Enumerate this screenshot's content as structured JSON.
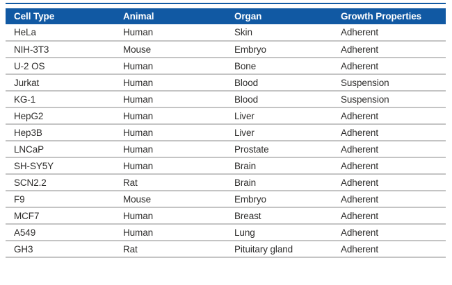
{
  "colors": {
    "header_bg": "#1159a3",
    "top_rule": "#1159a3",
    "row_border": "#c4c4c4",
    "header_text": "#ffffff",
    "body_text": "#2e2d2c"
  },
  "table": {
    "columns": [
      "Cell Type",
      "Animal",
      "Organ",
      "Growth Properties"
    ],
    "rows": [
      {
        "cell_type": "HeLa",
        "animal": "Human",
        "organ": "Skin",
        "growth": "Adherent"
      },
      {
        "cell_type": "NIH-3T3",
        "animal": "Mouse",
        "organ": "Embryo",
        "growth": "Adherent"
      },
      {
        "cell_type": "U-2 OS",
        "animal": "Human",
        "organ": "Bone",
        "growth": "Adherent"
      },
      {
        "cell_type": "Jurkat",
        "animal": "Human",
        "organ": "Blood",
        "growth": "Suspension"
      },
      {
        "cell_type": "KG-1",
        "animal": "Human",
        "organ": "Blood",
        "growth": "Suspension"
      },
      {
        "cell_type": "HepG2",
        "animal": "Human",
        "organ": "Liver",
        "growth": "Adherent"
      },
      {
        "cell_type": "Hep3B",
        "animal": "Human",
        "organ": "Liver",
        "growth": "Adherent"
      },
      {
        "cell_type": "LNCaP",
        "animal": "Human",
        "organ": "Prostate",
        "growth": "Adherent"
      },
      {
        "cell_type": "SH-SY5Y",
        "animal": "Human",
        "organ": "Brain",
        "growth": "Adherent"
      },
      {
        "cell_type": "SCN2.2",
        "animal": "Rat",
        "organ": "Brain",
        "growth": "Adherent"
      },
      {
        "cell_type": "F9",
        "animal": "Mouse",
        "organ": "Embryo",
        "growth": "Adherent"
      },
      {
        "cell_type": "MCF7",
        "animal": "Human",
        "organ": "Breast",
        "growth": "Adherent"
      },
      {
        "cell_type": "A549",
        "animal": "Human",
        "organ": "Lung",
        "growth": "Adherent"
      },
      {
        "cell_type": "GH3",
        "animal": "Rat",
        "organ": "Pituitary gland",
        "growth": "Adherent"
      }
    ]
  }
}
